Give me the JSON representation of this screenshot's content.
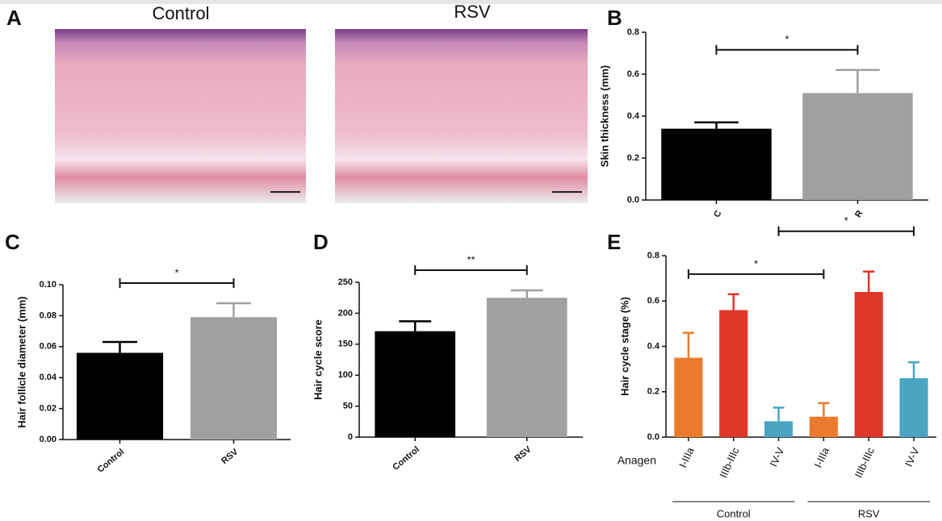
{
  "figure_a": {
    "label": "A",
    "images": [
      "Control",
      "RSV"
    ]
  },
  "chart_data": [
    {
      "type": "bar",
      "label": "B",
      "ylabel": "Skin thickness (mm)",
      "categories": [
        "C",
        "R"
      ],
      "values": [
        0.34,
        0.51
      ],
      "errors": [
        0.03,
        0.11
      ],
      "colors": [
        "#000000",
        "#a0a0a0"
      ],
      "ylim": [
        0,
        0.8
      ],
      "yticks": [
        {
          "value": 0,
          "label": "0.0"
        },
        0.2,
        0.4,
        0.6,
        0.8
      ],
      "significance": [
        {
          "from": 0,
          "to": 1,
          "label": "*"
        }
      ]
    },
    {
      "type": "bar",
      "label": "C",
      "ylabel": "Hair follicle diameter (mm)",
      "categories": [
        "Control",
        "RSV"
      ],
      "values": [
        0.056,
        0.079
      ],
      "errors": [
        0.007,
        0.009
      ],
      "colors": [
        "#000000",
        "#a0a0a0"
      ],
      "ylim": [
        0,
        0.1
      ],
      "yticks": [
        {
          "value": 0,
          "label": "0.00"
        },
        {
          "value": 0.02,
          "label": "0.02"
        },
        {
          "value": 0.04,
          "label": "0.04"
        },
        {
          "value": 0.06,
          "label": "0.06"
        },
        {
          "value": 0.08,
          "label": "0.08"
        },
        {
          "value": 0.1,
          "label": "0.10"
        }
      ],
      "significance": [
        {
          "from": 0,
          "to": 1,
          "label": "*"
        }
      ]
    },
    {
      "type": "bar",
      "label": "D",
      "ylabel": "Hair cycle score",
      "categories": [
        "Control",
        "RSV"
      ],
      "values": [
        171,
        225
      ],
      "errors": [
        16,
        12
      ],
      "colors": [
        "#000000",
        "#a0a0a0"
      ],
      "ylim": [
        0,
        250
      ],
      "yticks": [
        0,
        50,
        100,
        150,
        200,
        250
      ],
      "significance": [
        {
          "from": 0,
          "to": 1,
          "label": "**"
        }
      ]
    },
    {
      "type": "bar",
      "label": "E",
      "ylabel": "Hair cycle stage (%)",
      "categories": [
        "I-IIIa",
        "IIIb-IIIc",
        "IV-V",
        "I-IIIa",
        "IIIb-IIIc",
        "IV-V"
      ],
      "values": [
        0.35,
        0.56,
        0.07,
        0.09,
        0.64,
        0.26
      ],
      "errors": [
        0.11,
        0.07,
        0.06,
        0.06,
        0.09,
        0.07
      ],
      "colors": [
        "#ea7b2c",
        "#e0372a",
        "#4aa5c4",
        "#ea7b2c",
        "#e0372a",
        "#4aa5c4"
      ],
      "ylim": [
        0,
        0.8
      ],
      "yticks": [
        {
          "value": 0,
          "label": "0.0"
        },
        0.2,
        0.4,
        0.6,
        0.8
      ],
      "group_label": "Anagen",
      "groups": [
        "Control",
        "RSV"
      ],
      "significance": [
        {
          "from": 0,
          "to": 3,
          "label": "*"
        },
        {
          "from": 2,
          "to": 5,
          "label": "*"
        }
      ]
    }
  ]
}
